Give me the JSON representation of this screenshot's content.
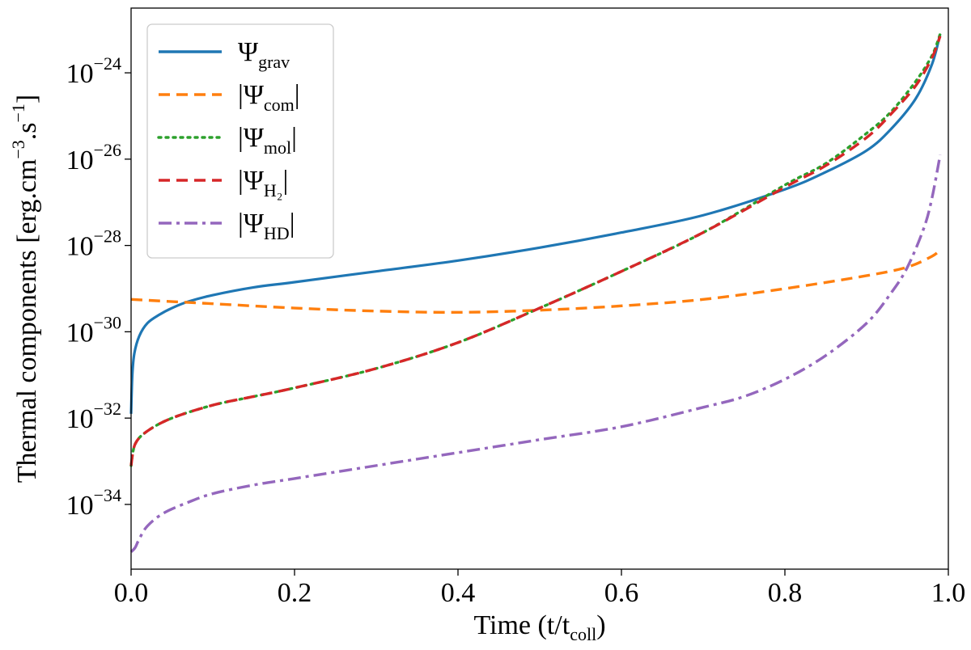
{
  "chart_data": {
    "type": "line",
    "title": "",
    "xlabel": "Time (t/t",
    "xlabel_sub": "coll",
    "xlabel_end": ")",
    "ylabel_prefix": "Thermal components [erg.cm",
    "ylabel_sup1": "−3",
    "ylabel_mid": ".s",
    "ylabel_sup2": "−1",
    "ylabel_end": "]",
    "y_scale": "log",
    "xlim": [
      0.0,
      1.0
    ],
    "ylim_log10": [
      -35.5,
      -22.5
    ],
    "x_ticks": [
      "0.0",
      "0.2",
      "0.4",
      "0.6",
      "0.8",
      "1.0"
    ],
    "x_tick_values": [
      0.0,
      0.2,
      0.4,
      0.6,
      0.8,
      1.0
    ],
    "y_tick_base": "10",
    "y_ticks": [
      "−24",
      "−26",
      "−28",
      "−30",
      "−32",
      "−34"
    ],
    "y_tick_log10": [
      -24,
      -26,
      -28,
      -30,
      -32,
      -34
    ],
    "legend_position": "upper-left",
    "series": [
      {
        "name": "Ψ",
        "name_sub": "grav",
        "bars": false,
        "color": "#1f77b4",
        "style": "solid",
        "x": [
          0.0,
          0.0015,
          0.004,
          0.01,
          0.02,
          0.035,
          0.05,
          0.07,
          0.1,
          0.15,
          0.2,
          0.3,
          0.4,
          0.5,
          0.6,
          0.7,
          0.8,
          0.85,
          0.9,
          0.93,
          0.96,
          0.98,
          0.99
        ],
        "log10": [
          -31.9,
          -31.0,
          -30.5,
          -30.1,
          -29.8,
          -29.6,
          -29.45,
          -29.3,
          -29.15,
          -28.97,
          -28.85,
          -28.6,
          -28.35,
          -28.05,
          -27.7,
          -27.3,
          -26.7,
          -26.3,
          -25.8,
          -25.3,
          -24.6,
          -23.8,
          -23.1
        ]
      },
      {
        "name": "Ψ",
        "name_sub": "com",
        "bars": true,
        "color": "#ff7f0e",
        "style": "dashed",
        "x": [
          0.0,
          0.1,
          0.2,
          0.3,
          0.4,
          0.5,
          0.6,
          0.7,
          0.8,
          0.9,
          0.95,
          0.98,
          0.99
        ],
        "log10": [
          -29.25,
          -29.35,
          -29.45,
          -29.52,
          -29.55,
          -29.5,
          -29.4,
          -29.25,
          -29.0,
          -28.7,
          -28.5,
          -28.25,
          -28.1
        ]
      },
      {
        "name": "Ψ",
        "name_sub": "mol",
        "bars": true,
        "color": "#2ca02c",
        "style": "dotted",
        "x": [
          0.0,
          0.005,
          0.02,
          0.05,
          0.1,
          0.15,
          0.2,
          0.3,
          0.4,
          0.5,
          0.6,
          0.7,
          0.8,
          0.85,
          0.9,
          0.93,
          0.96,
          0.98,
          0.99
        ],
        "log10": [
          -33.1,
          -32.6,
          -32.3,
          -32.0,
          -31.7,
          -31.5,
          -31.3,
          -30.85,
          -30.25,
          -29.45,
          -28.6,
          -27.7,
          -26.6,
          -26.1,
          -25.4,
          -24.9,
          -24.2,
          -23.6,
          -23.1
        ]
      },
      {
        "name": "Ψ",
        "name_sub": "H₂",
        "bars": true,
        "color": "#d62728",
        "style": "dashed",
        "x": [
          0.0,
          0.005,
          0.02,
          0.05,
          0.1,
          0.15,
          0.2,
          0.3,
          0.4,
          0.5,
          0.6,
          0.7,
          0.8,
          0.85,
          0.9,
          0.93,
          0.96,
          0.98,
          0.99
        ],
        "log10": [
          -33.1,
          -32.6,
          -32.3,
          -32.0,
          -31.7,
          -31.5,
          -31.3,
          -30.85,
          -30.25,
          -29.45,
          -28.6,
          -27.7,
          -26.65,
          -26.15,
          -25.5,
          -24.95,
          -24.3,
          -23.65,
          -23.15
        ]
      },
      {
        "name": "Ψ",
        "name_sub": "HD",
        "bars": true,
        "color": "#9467bd",
        "style": "dashdot",
        "x": [
          0.0,
          0.005,
          0.01,
          0.02,
          0.04,
          0.07,
          0.1,
          0.15,
          0.2,
          0.3,
          0.4,
          0.5,
          0.6,
          0.7,
          0.75,
          0.8,
          0.85,
          0.9,
          0.93,
          0.95,
          0.97,
          0.98,
          0.99
        ],
        "log10": [
          -35.1,
          -35.0,
          -34.8,
          -34.5,
          -34.2,
          -33.95,
          -33.75,
          -33.55,
          -33.4,
          -33.1,
          -32.8,
          -32.5,
          -32.2,
          -31.75,
          -31.5,
          -31.1,
          -30.55,
          -29.8,
          -29.1,
          -28.5,
          -27.6,
          -26.9,
          -25.9
        ]
      }
    ]
  }
}
